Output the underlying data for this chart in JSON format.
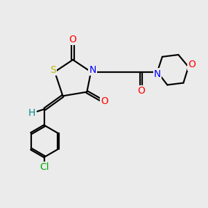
{
  "bg_color": "#ebebeb",
  "atom_colors": {
    "S": "#b8b800",
    "N": "#0000ff",
    "O": "#ff0000",
    "Cl": "#00aa00",
    "H": "#008888",
    "C": "#000000"
  },
  "bond_lw": 1.6,
  "figsize": [
    3.0,
    3.0
  ],
  "dpi": 100
}
